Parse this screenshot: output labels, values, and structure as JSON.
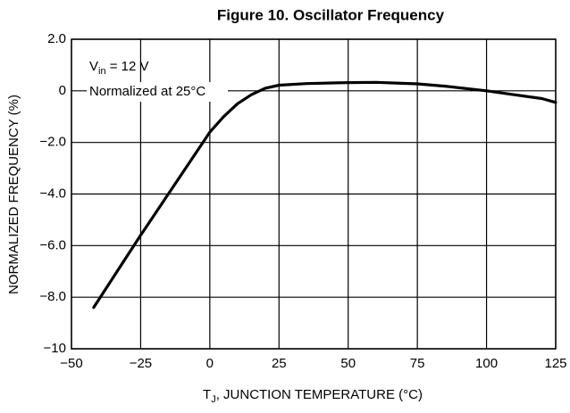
{
  "chart_data": {
    "type": "line",
    "title": "Figure 10. Oscillator Frequency",
    "ylabel": "NORMALIZED FREQUENCY (%)",
    "xlabel_parts": [
      "T",
      "J",
      ", JUNCTION TEMPERATURE (°C)"
    ],
    "annotation_parts": [
      "V",
      "in",
      " = 12 V"
    ],
    "annotation_note": "Normalized at 25°C",
    "xlim": [
      -50,
      125
    ],
    "xticks": [
      {
        "value": -50,
        "label": "−50"
      },
      {
        "value": -25,
        "label": "−25"
      },
      0,
      25,
      50,
      75,
      100,
      125
    ],
    "ylim": [
      -10,
      2
    ],
    "yticks": [
      {
        "value": -10,
        "label": "−10"
      },
      {
        "value": -8,
        "label": "−8.0"
      },
      {
        "value": -6,
        "label": "−6.0"
      },
      {
        "value": -4,
        "label": "−4.0"
      },
      {
        "value": -2,
        "label": "−2.0"
      },
      0,
      {
        "value": 2,
        "label": "2.0"
      }
    ],
    "grid": true,
    "series": [
      {
        "color": "#000000",
        "x": [
          -42,
          -25,
          -10,
          0,
          5,
          10,
          15,
          20,
          25,
          35,
          50,
          60,
          75,
          85,
          100,
          110,
          120,
          125
        ],
        "values": [
          -8.4,
          -5.6,
          -3.2,
          -1.6,
          -1.0,
          -0.5,
          -0.15,
          0.1,
          0.22,
          0.28,
          0.32,
          0.33,
          0.27,
          0.18,
          0.0,
          -0.15,
          -0.3,
          -0.45
        ]
      }
    ]
  }
}
